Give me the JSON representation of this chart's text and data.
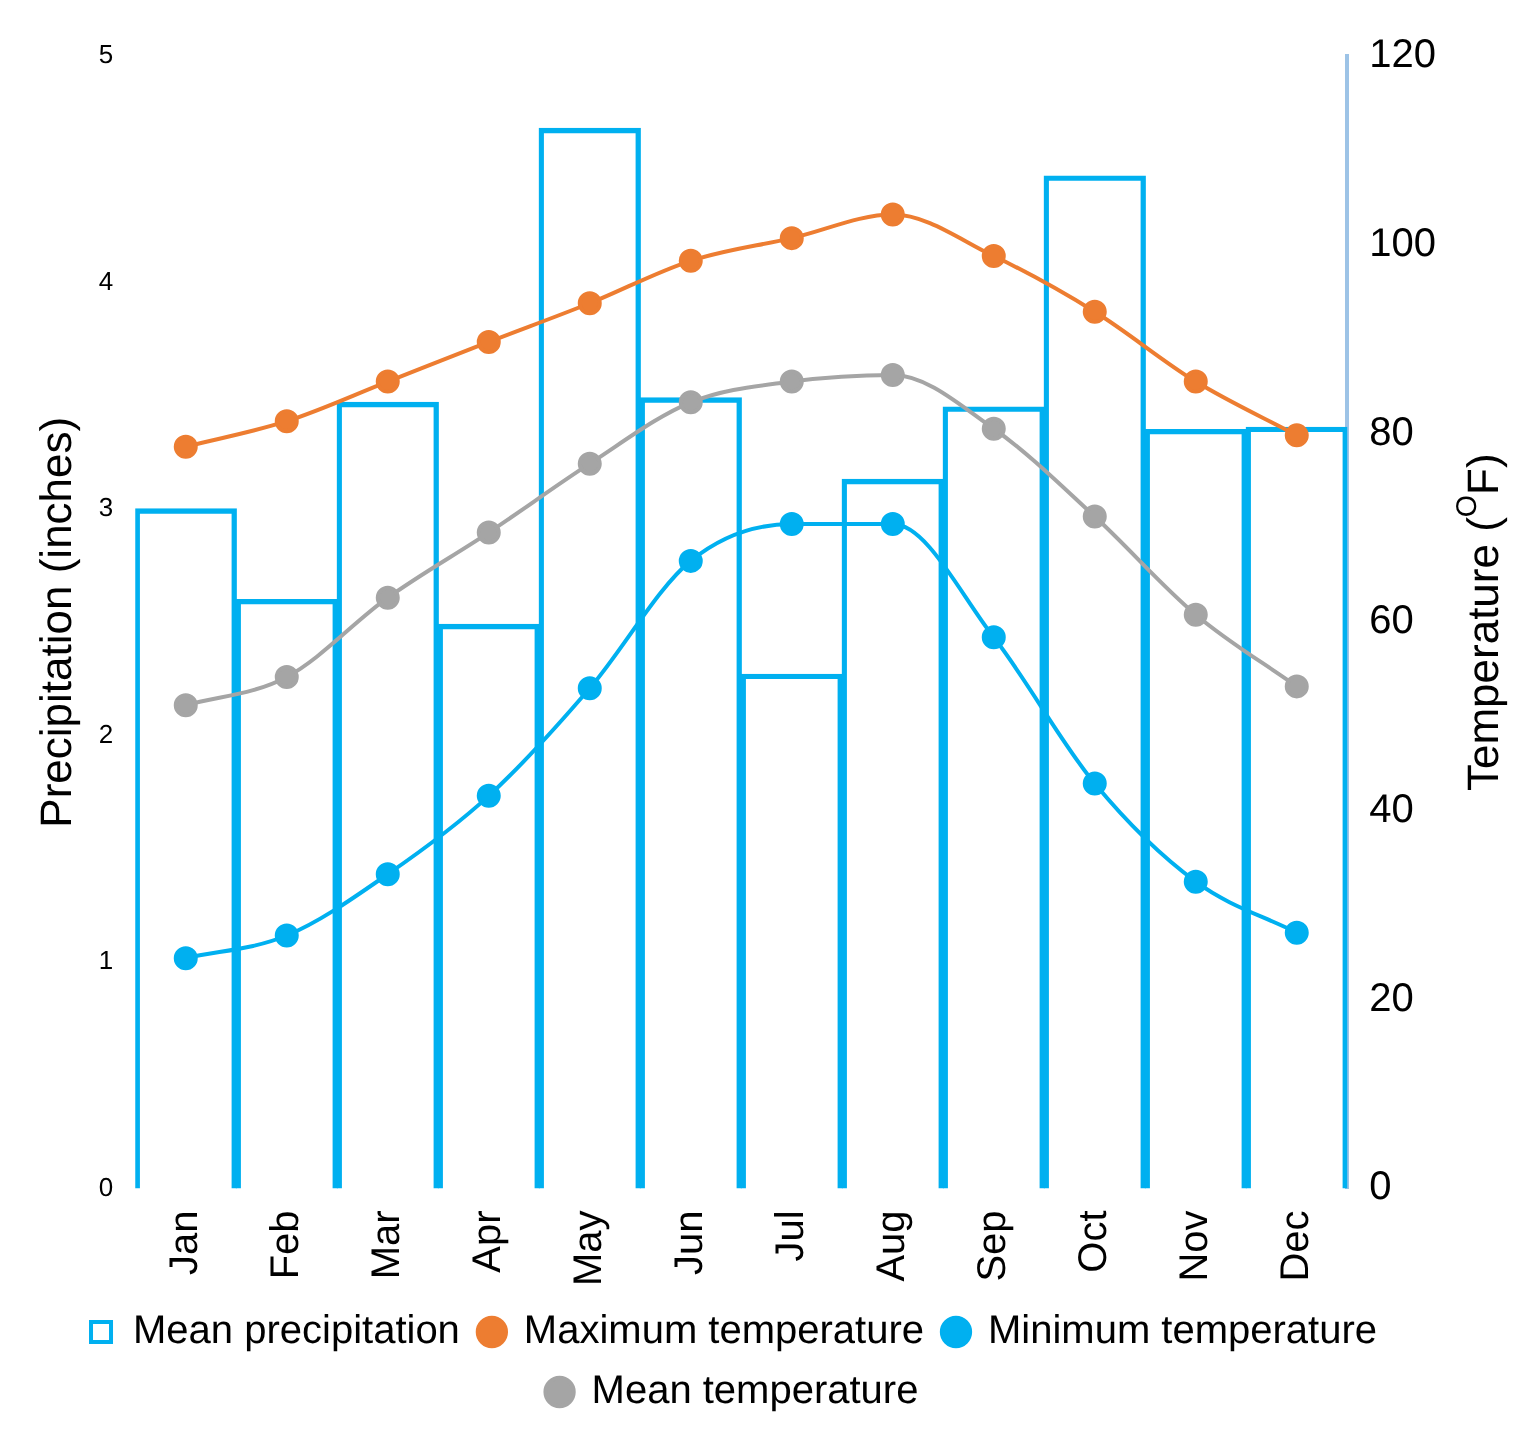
{
  "chart_data": {
    "type": "bar",
    "categories": [
      "Jan",
      "Feb",
      "Mar",
      "Apr",
      "May",
      "Jun",
      "Jul",
      "Aug",
      "Sep",
      "Oct",
      "Nov",
      "Dec"
    ],
    "ylabel": "Precipitation (inches)",
    "y2label": "Temperature ($^{O}$F)",
    "ylim": [
      0,
      5
    ],
    "yticks": [
      0,
      1,
      2,
      3,
      4,
      5
    ],
    "y2lim": [
      0,
      120
    ],
    "y2ticks": [
      0,
      20,
      40,
      60,
      80,
      100,
      120
    ],
    "grid": false,
    "legend": "bottom",
    "marker": "circle",
    "series": [
      {
        "name": "Mean precipitation",
        "color": "#00b0f0",
        "values": [
          3.0,
          2.6,
          3.47,
          2.49,
          4.68,
          3.49,
          2.27,
          3.13,
          3.45,
          4.47,
          3.35,
          3.36
        ]
      },
      {
        "name": "Maximum temperature",
        "type": "line",
        "axis": "y2",
        "color": "#ed7d31",
        "values": [
          78.6,
          81.3,
          85.5,
          89.7,
          93.8,
          98.3,
          100.7,
          103.2,
          98.8,
          92.9,
          85.5,
          79.8
        ]
      },
      {
        "name": "Minimum temperature",
        "type": "line",
        "axis": "y2",
        "color": "#00b0f0",
        "values": [
          24.4,
          26.8,
          33.3,
          41.6,
          53.0,
          66.5,
          70.4,
          70.4,
          58.4,
          42.9,
          32.5,
          27.1
        ]
      },
      {
        "name": "Mean temperature",
        "type": "line",
        "axis": "y2",
        "color": "#a5a5a5",
        "values": [
          51.2,
          54.2,
          62.6,
          69.5,
          76.8,
          83.3,
          85.5,
          86.2,
          80.5,
          71.2,
          60.8,
          53.2
        ]
      }
    ]
  }
}
